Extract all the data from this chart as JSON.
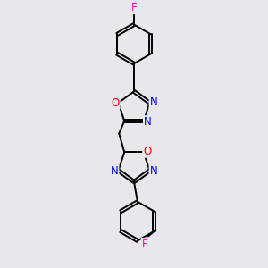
{
  "background_color": "#e8e8ec",
  "line_color": "#000000",
  "bond_width": 1.4,
  "atom_colors": {
    "N": "#0000ff",
    "O": "#ff0000",
    "F": "#ff00cc",
    "C": "#000000"
  },
  "font_size_atom": 8.5
}
